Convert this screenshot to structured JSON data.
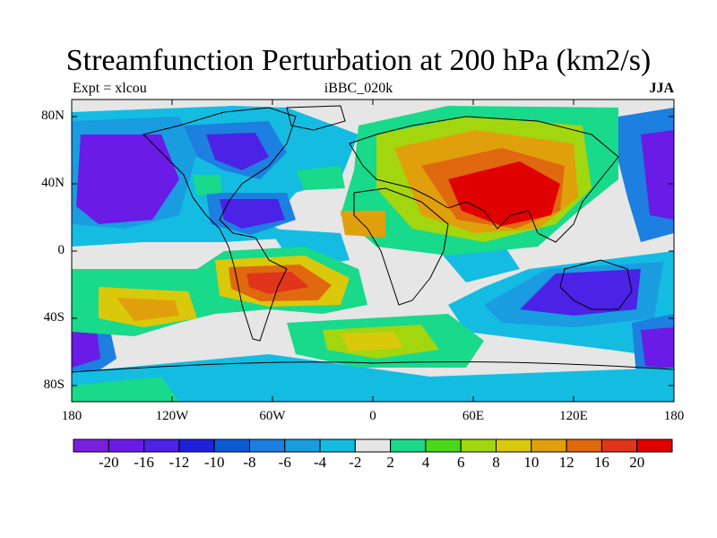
{
  "title": "Streamfunction Perturbation at 200 hPa (km2/s)",
  "subtitle_left": "Expt = xlcou",
  "subtitle_center": "iBBC_020k",
  "subtitle_right": "JJA",
  "lat_ticks": [
    "80N",
    "40N",
    "0",
    "40S",
    "80S"
  ],
  "lon_ticks": [
    "180",
    "120W",
    "60W",
    "0",
    "60E",
    "120E",
    "180"
  ],
  "colorbar": {
    "labels": [
      "-20",
      "-16",
      "-12",
      "-10",
      "-8",
      "-6",
      "-4",
      "-2",
      "2",
      "4",
      "6",
      "8",
      "10",
      "12",
      "16",
      "20"
    ],
    "colors": [
      "#7a1fe0",
      "#6a1be6",
      "#4c22e6",
      "#1f1fdc",
      "#0a5ad6",
      "#1d7fe0",
      "#1a9ce0",
      "#14bce2",
      "#e6e6e6",
      "#19d98a",
      "#4ad81b",
      "#a2d60f",
      "#dac90a",
      "#e0a00c",
      "#e0680f",
      "#e0351a",
      "#e00000"
    ]
  },
  "colors": {
    "background_land_neutral": "#e6e6e6",
    "coastline": "#000000"
  }
}
